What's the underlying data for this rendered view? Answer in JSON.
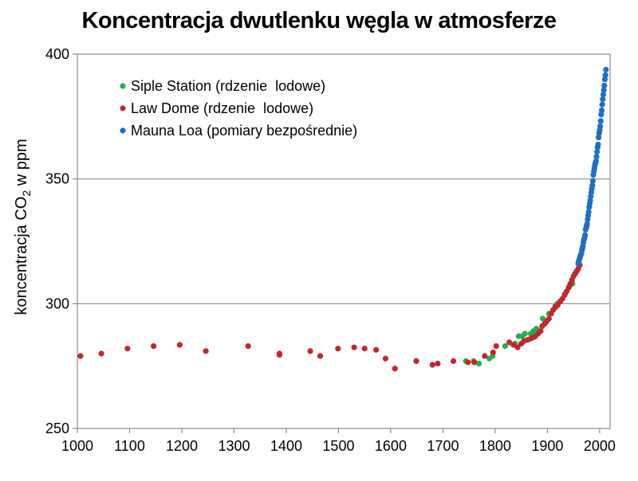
{
  "chart_data": {
    "type": "scatter",
    "title": "Koncentracja dwutlenku węgla w atmosferze",
    "ylabel": {
      "prefix": "koncentracja CO",
      "subscript": "2",
      "suffix": " w ppm"
    },
    "xlabel": "",
    "xlim": [
      1000,
      2020
    ],
    "ylim": [
      250,
      400
    ],
    "xticks": [
      1000,
      1100,
      1200,
      1300,
      1400,
      1500,
      1600,
      1700,
      1800,
      1900,
      2000
    ],
    "yticks": [
      250,
      300,
      350,
      400
    ],
    "grid": "horizontal",
    "legend_position": "top-left",
    "series": [
      {
        "name": "Siple Station (rdzenie  lodowe)",
        "color": "#22b14c",
        "points": [
          [
            1744,
            277
          ],
          [
            1759,
            277
          ],
          [
            1769,
            276
          ],
          [
            1789,
            278
          ],
          [
            1795,
            279
          ],
          [
            1819,
            283
          ],
          [
            1838,
            284
          ],
          [
            1845,
            287
          ],
          [
            1852,
            287
          ],
          [
            1857,
            288
          ],
          [
            1868,
            288
          ],
          [
            1873,
            289
          ],
          [
            1879,
            290
          ],
          [
            1891,
            294
          ],
          [
            1903,
            296
          ],
          [
            1915,
            299
          ],
          [
            1919,
            300
          ],
          [
            1925,
            301
          ],
          [
            1934,
            304
          ],
          [
            1942,
            307
          ],
          [
            1948,
            308
          ],
          [
            1953,
            312
          ]
        ]
      },
      {
        "name": "Law Dome (rdzenie  lodowe)",
        "color": "#c0282d",
        "points": [
          [
            1006,
            279
          ],
          [
            1046,
            280
          ],
          [
            1096,
            282
          ],
          [
            1146,
            283
          ],
          [
            1196,
            283.5
          ],
          [
            1246,
            281
          ],
          [
            1327,
            283
          ],
          [
            1387,
            280
          ],
          [
            1387,
            279.5
          ],
          [
            1446,
            281
          ],
          [
            1465,
            279
          ],
          [
            1499,
            282
          ],
          [
            1530,
            282.5
          ],
          [
            1550,
            282
          ],
          [
            1572,
            281.5
          ],
          [
            1590,
            278
          ],
          [
            1608,
            274
          ],
          [
            1649,
            277
          ],
          [
            1680,
            275.5
          ],
          [
            1690,
            276
          ],
          [
            1720,
            277
          ],
          [
            1748,
            276.5
          ],
          [
            1760,
            276.5
          ],
          [
            1780,
            279
          ],
          [
            1796,
            280.5
          ],
          [
            1802,
            283
          ],
          [
            1827,
            284.5
          ],
          [
            1835,
            283.5
          ],
          [
            1843,
            282.5
          ],
          [
            1850,
            284
          ],
          [
            1855,
            285
          ],
          [
            1862,
            285.5
          ],
          [
            1868,
            286
          ],
          [
            1873,
            286.5
          ],
          [
            1877,
            287
          ],
          [
            1882,
            288
          ],
          [
            1887,
            289
          ],
          [
            1890,
            291
          ],
          [
            1895,
            292
          ],
          [
            1899,
            293
          ],
          [
            1903,
            294
          ],
          [
            1907,
            296
          ],
          [
            1911,
            297.5
          ],
          [
            1915,
            298.5
          ],
          [
            1920,
            299.5
          ],
          [
            1925,
            301
          ],
          [
            1929,
            302
          ],
          [
            1933,
            303.5
          ],
          [
            1937,
            305
          ],
          [
            1941,
            306.5
          ],
          [
            1944,
            308
          ],
          [
            1947,
            309.5
          ],
          [
            1950,
            311
          ],
          [
            1953,
            312
          ],
          [
            1956,
            313
          ],
          [
            1959,
            314
          ],
          [
            1962,
            315.5
          ]
        ]
      },
      {
        "name": "Mauna Loa (pomiary bezpośrednie)",
        "color": "#1f6fc5",
        "points": [
          [
            1959,
            316
          ],
          [
            1960,
            317
          ],
          [
            1961,
            317.6
          ],
          [
            1962,
            318.4
          ],
          [
            1963,
            319
          ],
          [
            1964,
            319.6
          ],
          [
            1965,
            320
          ],
          [
            1966,
            321.4
          ],
          [
            1967,
            322.2
          ],
          [
            1968,
            323
          ],
          [
            1969,
            324.6
          ],
          [
            1970,
            325.7
          ],
          [
            1971,
            326.3
          ],
          [
            1972,
            327.5
          ],
          [
            1973,
            329.7
          ],
          [
            1974,
            330.2
          ],
          [
            1975,
            331.1
          ],
          [
            1976,
            332
          ],
          [
            1977,
            333.8
          ],
          [
            1978,
            335.4
          ],
          [
            1979,
            336.8
          ],
          [
            1980,
            338.7
          ],
          [
            1981,
            340.1
          ],
          [
            1982,
            341.4
          ],
          [
            1983,
            343
          ],
          [
            1984,
            344.6
          ],
          [
            1985,
            346
          ],
          [
            1986,
            347.4
          ],
          [
            1987,
            349.2
          ],
          [
            1988,
            351.6
          ],
          [
            1989,
            353.1
          ],
          [
            1990,
            354.4
          ],
          [
            1991,
            355.6
          ],
          [
            1992,
            356.4
          ],
          [
            1993,
            357.1
          ],
          [
            1994,
            358.9
          ],
          [
            1995,
            360.9
          ],
          [
            1996,
            362.6
          ],
          [
            1997,
            363.8
          ],
          [
            1998,
            366.6
          ],
          [
            1999,
            368.3
          ],
          [
            2000,
            369.5
          ],
          [
            2001,
            371.1
          ],
          [
            2002,
            373.2
          ],
          [
            2003,
            375.8
          ],
          [
            2004,
            377.5
          ],
          [
            2005,
            379.8
          ],
          [
            2006,
            381.9
          ],
          [
            2007,
            383.8
          ],
          [
            2008,
            385.6
          ],
          [
            2009,
            387.4
          ],
          [
            2010,
            389.9
          ],
          [
            2011,
            391.6
          ],
          [
            2012,
            393.8
          ]
        ]
      }
    ]
  }
}
